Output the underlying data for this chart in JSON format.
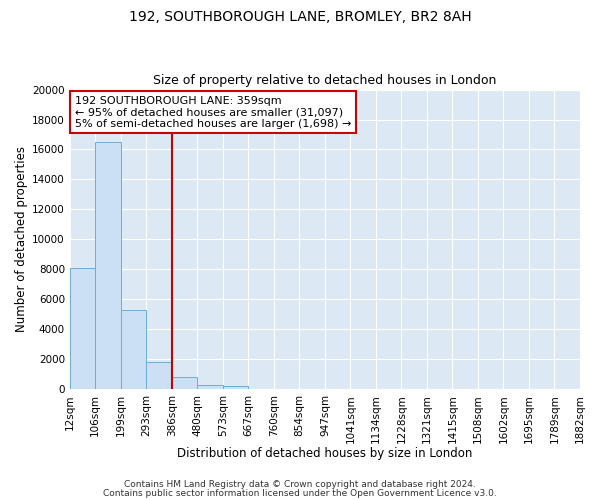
{
  "title": "192, SOUTHBOROUGH LANE, BROMLEY, BR2 8AH",
  "subtitle": "Size of property relative to detached houses in London",
  "xlabel": "Distribution of detached houses by size in London",
  "ylabel": "Number of detached properties",
  "bin_labels": [
    "12sqm",
    "106sqm",
    "199sqm",
    "293sqm",
    "386sqm",
    "480sqm",
    "573sqm",
    "667sqm",
    "760sqm",
    "854sqm",
    "947sqm",
    "1041sqm",
    "1134sqm",
    "1228sqm",
    "1321sqm",
    "1415sqm",
    "1508sqm",
    "1602sqm",
    "1695sqm",
    "1789sqm",
    "1882sqm"
  ],
  "bar_values": [
    8100,
    16500,
    5300,
    1800,
    800,
    300,
    200,
    0,
    0,
    0,
    0,
    0,
    0,
    0,
    0,
    0,
    0,
    0,
    0,
    0
  ],
  "bar_color": "#cce0f5",
  "bar_edge_color": "#6aaed6",
  "vline_x_label_idx": 4,
  "vline_color": "#cc0000",
  "ylim": [
    0,
    20000
  ],
  "yticks": [
    0,
    2000,
    4000,
    6000,
    8000,
    10000,
    12000,
    14000,
    16000,
    18000,
    20000
  ],
  "annotation_box_line1": "192 SOUTHBOROUGH LANE: 359sqm",
  "annotation_box_line2": "← 95% of detached houses are smaller (31,097)",
  "annotation_box_line3": "5% of semi-detached houses are larger (1,698) →",
  "annotation_box_color": "#cc0000",
  "footer_line1": "Contains HM Land Registry data © Crown copyright and database right 2024.",
  "footer_line2": "Contains public sector information licensed under the Open Government Licence v3.0.",
  "background_color": "#ffffff",
  "plot_bg_color": "#dce9f5",
  "grid_color": "#ffffff",
  "title_fontsize": 10,
  "subtitle_fontsize": 9,
  "axis_label_fontsize": 8.5,
  "tick_fontsize": 7.5,
  "annotation_fontsize": 8,
  "footer_fontsize": 6.5
}
